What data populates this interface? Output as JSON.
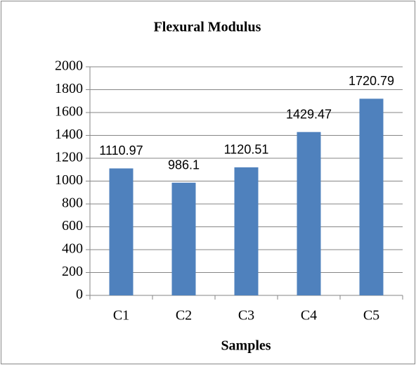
{
  "chart_data": {
    "type": "bar",
    "title": "Flexural Modulus",
    "xlabel": "Samples",
    "categories": [
      "C1",
      "C2",
      "C3",
      "C4",
      "C5"
    ],
    "values": [
      1110.97,
      986.1,
      1120.51,
      1429.47,
      1720.79
    ],
    "color": "#4f81bd",
    "ylim": [
      0,
      2000
    ],
    "yticks": [
      0,
      200,
      400,
      600,
      800,
      1000,
      1200,
      1400,
      1600,
      1800,
      2000
    ],
    "grid": true
  }
}
